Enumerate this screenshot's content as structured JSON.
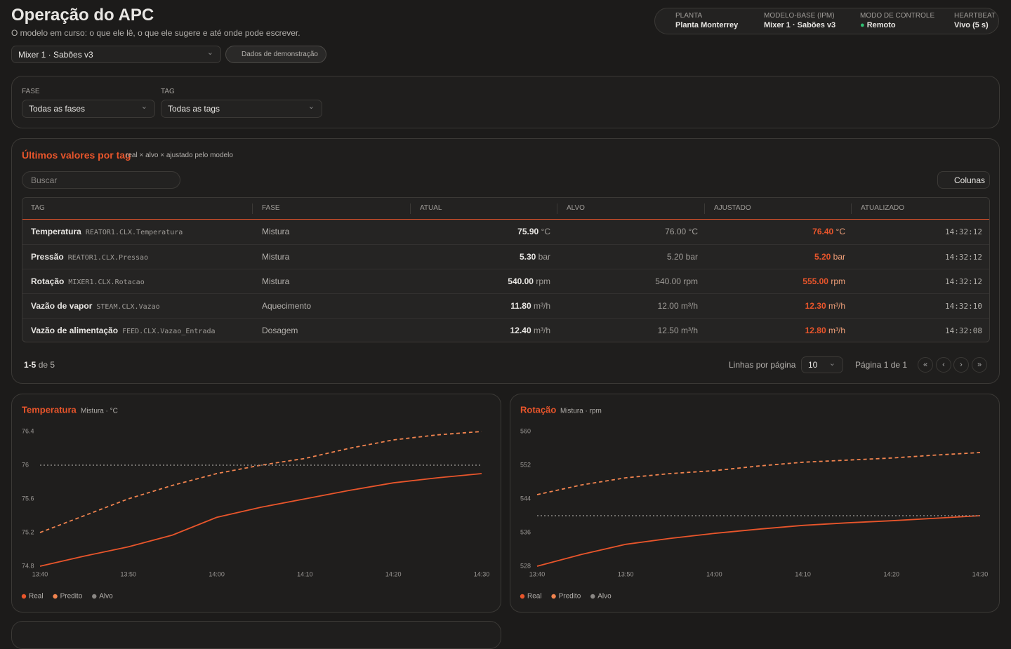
{
  "header": {
    "title": "Operação do APC",
    "subtitle": "O modelo em curso: o que ele lê, o que ele sugere e até onde pode escrever."
  },
  "status": [
    {
      "label": "PLANTA",
      "value": "Planta Monterrey"
    },
    {
      "label": "MODELO-BASE (IPM)",
      "value": "Mixer 1 · Sabões v3"
    },
    {
      "label": "MODO DE CONTROLE",
      "value": "Remoto"
    },
    {
      "label": "HEARTBEAT",
      "value": "Vivo (5 s)"
    }
  ],
  "model_select": "Mixer 1 · Sabões v3",
  "demo_button": "Dados de demonstração",
  "filters": [
    {
      "label": "FASE",
      "value": "Todas as fases"
    },
    {
      "label": "TAG",
      "value": "Todas as tags"
    }
  ],
  "table_panel": {
    "title": "Últimos valores por tag",
    "subtitle": "real × alvo × ajustado pelo modelo",
    "search_placeholder": "Buscar",
    "columns_button": "Colunas"
  },
  "table": {
    "headers": [
      "TAG",
      "FASE",
      "ATUAL",
      "ALVO",
      "AJUSTADO",
      "ATUALIZADO"
    ],
    "rows": [
      {
        "tag": "Temperatura",
        "code": "REATOR1.CLX.Temperatura",
        "phase": "Mistura",
        "actual": "75.90",
        "target": "76.00",
        "adjusted": "76.40",
        "unit": "°C",
        "updated": "14:32:12"
      },
      {
        "tag": "Pressão",
        "code": "REATOR1.CLX.Pressao",
        "phase": "Mistura",
        "actual": "5.30",
        "target": "5.20",
        "adjusted": "5.20",
        "unit": "bar",
        "updated": "14:32:12"
      },
      {
        "tag": "Rotação",
        "code": "MIXER1.CLX.Rotacao",
        "phase": "Mistura",
        "actual": "540.00",
        "target": "540.00",
        "adjusted": "555.00",
        "unit": "rpm",
        "updated": "14:32:12"
      },
      {
        "tag": "Vazão de vapor",
        "code": "STEAM.CLX.Vazao",
        "phase": "Aquecimento",
        "actual": "11.80",
        "target": "12.00",
        "adjusted": "12.30",
        "unit": "m³/h",
        "updated": "14:32:10"
      },
      {
        "tag": "Vazão de alimentação",
        "code": "FEED.CLX.Vazao_Entrada",
        "phase": "Dosagem",
        "actual": "12.40",
        "target": "12.50",
        "adjusted": "12.80",
        "unit": "m³/h",
        "updated": "14:32:08"
      }
    ]
  },
  "pagination": {
    "range": "1-5",
    "of": "de 5",
    "rows_per_page_label": "Linhas por página",
    "rows_per_page": "10",
    "page": "Página 1 de 1"
  },
  "chart_data": [
    {
      "type": "line",
      "title": "Temperatura",
      "subtitle": "Mistura · °C",
      "x": [
        "13:40",
        "13:45",
        "13:50",
        "13:55",
        "14:00",
        "14:05",
        "14:10",
        "14:15",
        "14:20",
        "14:25",
        "14:30"
      ],
      "xticks": [
        "13:40",
        "13:50",
        "14:00",
        "14:10",
        "14:20",
        "14:30"
      ],
      "ylim": [
        74.8,
        76.4
      ],
      "yticks": [
        76.4,
        76,
        75.6,
        75.2,
        74.8
      ],
      "series": [
        {
          "name": "Real",
          "color": "#e8552b",
          "style": "solid",
          "values": [
            74.8,
            74.92,
            75.03,
            75.17,
            75.38,
            75.5,
            75.6,
            75.7,
            75.79,
            75.85,
            75.9
          ]
        },
        {
          "name": "Predito",
          "color": "#f2844f",
          "style": "dashed",
          "values": [
            75.2,
            75.4,
            75.6,
            75.76,
            75.9,
            76.0,
            76.08,
            76.2,
            76.3,
            76.36,
            76.4
          ]
        },
        {
          "name": "Alvo",
          "color": "#8a8784",
          "style": "dotted",
          "values": [
            76,
            76,
            76,
            76,
            76,
            76,
            76,
            76,
            76,
            76,
            76
          ]
        }
      ]
    },
    {
      "type": "line",
      "title": "Rotação",
      "subtitle": "Mistura · rpm",
      "x": [
        "13:40",
        "13:45",
        "13:50",
        "13:55",
        "14:00",
        "14:05",
        "14:10",
        "14:15",
        "14:20",
        "14:25",
        "14:30"
      ],
      "xticks": [
        "13:40",
        "13:50",
        "14:00",
        "14:10",
        "14:20",
        "14:30"
      ],
      "ylim": [
        528,
        560
      ],
      "yticks": [
        560,
        552,
        544,
        536,
        528
      ],
      "series": [
        {
          "name": "Real",
          "color": "#e8552b",
          "style": "solid",
          "values": [
            528,
            530.8,
            533.2,
            534.6,
            535.8,
            536.8,
            537.7,
            538.3,
            538.8,
            539.4,
            540
          ]
        },
        {
          "name": "Predito",
          "color": "#f2844f",
          "style": "dashed",
          "values": [
            545,
            547.3,
            549,
            550,
            550.7,
            551.8,
            552.7,
            553.2,
            553.7,
            554.4,
            555
          ]
        },
        {
          "name": "Alvo",
          "color": "#8a8784",
          "style": "dotted",
          "values": [
            540,
            540,
            540,
            540,
            540,
            540,
            540,
            540,
            540,
            540,
            540
          ]
        }
      ]
    }
  ]
}
